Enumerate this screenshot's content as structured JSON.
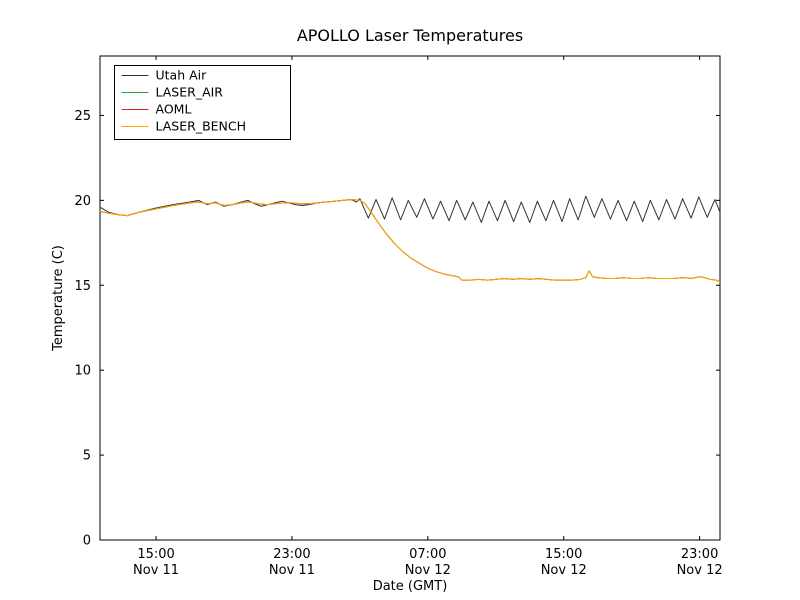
{
  "chart_data": {
    "type": "line",
    "title": "APOLLO Laser Temperatures",
    "xlabel": "Date (GMT)",
    "ylabel": "Temperature (C)",
    "x_unit": "hours since Nov 11 00:00 GMT",
    "xlim": [
      11.7,
      48.2
    ],
    "ylim": [
      0,
      28.5
    ],
    "grid": false,
    "legend_position": "upper left",
    "yticks": [
      0,
      5,
      10,
      15,
      20,
      25
    ],
    "xticks": [
      {
        "t": 15,
        "time": "15:00",
        "date": "Nov 11"
      },
      {
        "t": 23,
        "time": "23:00",
        "date": "Nov 11"
      },
      {
        "t": 31,
        "time": "07:00",
        "date": "Nov 12"
      },
      {
        "t": 39,
        "time": "15:00",
        "date": "Nov 12"
      },
      {
        "t": 47,
        "time": "23:00",
        "date": "Nov 12"
      }
    ],
    "series": [
      {
        "name": "Utah Air",
        "color": "#333333",
        "points": [
          [
            11.7,
            19.6
          ],
          [
            12.2,
            19.3
          ],
          [
            12.8,
            19.15
          ],
          [
            13.3,
            19.1
          ],
          [
            14,
            19.3
          ],
          [
            15,
            19.55
          ],
          [
            16,
            19.75
          ],
          [
            17,
            19.9
          ],
          [
            17.5,
            20.0
          ],
          [
            18,
            19.75
          ],
          [
            18.5,
            19.9
          ],
          [
            19,
            19.65
          ],
          [
            19.5,
            19.75
          ],
          [
            20,
            19.9
          ],
          [
            20.4,
            20.0
          ],
          [
            20.8,
            19.8
          ],
          [
            21.2,
            19.65
          ],
          [
            21.6,
            19.75
          ],
          [
            22,
            19.85
          ],
          [
            22.4,
            19.95
          ],
          [
            22.8,
            19.85
          ],
          [
            23.2,
            19.75
          ],
          [
            23.6,
            19.7
          ],
          [
            24,
            19.75
          ],
          [
            24.5,
            19.85
          ],
          [
            25,
            19.9
          ],
          [
            25.5,
            19.95
          ],
          [
            26,
            20.0
          ],
          [
            26.5,
            20.05
          ],
          [
            26.8,
            19.9
          ],
          [
            27.0,
            20.1
          ],
          [
            27.5,
            18.95
          ],
          [
            27.95,
            20.05
          ],
          [
            28.45,
            18.9
          ],
          [
            28.9,
            20.15
          ],
          [
            29.4,
            18.85
          ],
          [
            29.85,
            20.0
          ],
          [
            30.35,
            19.0
          ],
          [
            30.8,
            20.1
          ],
          [
            31.3,
            18.9
          ],
          [
            31.75,
            19.95
          ],
          [
            32.25,
            18.8
          ],
          [
            32.7,
            20.0
          ],
          [
            33.2,
            18.85
          ],
          [
            33.65,
            19.9
          ],
          [
            34.15,
            18.7
          ],
          [
            34.6,
            19.95
          ],
          [
            35.1,
            18.8
          ],
          [
            35.55,
            20.0
          ],
          [
            36.05,
            18.75
          ],
          [
            36.5,
            19.9
          ],
          [
            37.0,
            18.7
          ],
          [
            37.45,
            19.95
          ],
          [
            37.95,
            18.8
          ],
          [
            38.4,
            20.0
          ],
          [
            38.9,
            18.75
          ],
          [
            39.35,
            20.1
          ],
          [
            39.85,
            18.85
          ],
          [
            40.3,
            20.25
          ],
          [
            40.8,
            19.0
          ],
          [
            41.25,
            20.1
          ],
          [
            41.75,
            18.9
          ],
          [
            42.2,
            20.0
          ],
          [
            42.7,
            18.8
          ],
          [
            43.15,
            19.95
          ],
          [
            43.65,
            18.75
          ],
          [
            44.1,
            20.0
          ],
          [
            44.6,
            18.85
          ],
          [
            45.05,
            20.05
          ],
          [
            45.55,
            18.9
          ],
          [
            46.0,
            20.1
          ],
          [
            46.5,
            18.95
          ],
          [
            46.95,
            20.2
          ],
          [
            47.45,
            19.0
          ],
          [
            47.9,
            20.05
          ],
          [
            48.2,
            19.3
          ]
        ]
      },
      {
        "name": "LASER_AIR",
        "color": "#2ca02c",
        "points_ref": "LASER_BENCH",
        "note": "coincides with LASER_BENCH and is hidden beneath it"
      },
      {
        "name": "AOML",
        "color": "#d62728",
        "points_ref": "LASER_BENCH",
        "note": "coincides with LASER_BENCH and is hidden beneath it"
      },
      {
        "name": "LASER_BENCH",
        "color": "#ffa500",
        "points": [
          [
            11.7,
            19.35
          ],
          [
            12.2,
            19.25
          ],
          [
            12.8,
            19.15
          ],
          [
            13.3,
            19.1
          ],
          [
            14,
            19.3
          ],
          [
            15,
            19.5
          ],
          [
            16,
            19.7
          ],
          [
            17,
            19.85
          ],
          [
            17.5,
            19.9
          ],
          [
            18,
            19.8
          ],
          [
            18.5,
            19.85
          ],
          [
            19,
            19.7
          ],
          [
            19.5,
            19.75
          ],
          [
            20,
            19.85
          ],
          [
            20.5,
            19.9
          ],
          [
            21,
            19.8
          ],
          [
            21.5,
            19.75
          ],
          [
            22,
            19.8
          ],
          [
            22.5,
            19.85
          ],
          [
            23,
            19.85
          ],
          [
            23.5,
            19.8
          ],
          [
            24,
            19.8
          ],
          [
            24.5,
            19.85
          ],
          [
            25,
            19.9
          ],
          [
            25.5,
            19.95
          ],
          [
            26,
            20.0
          ],
          [
            26.5,
            20.05
          ],
          [
            27.0,
            20.0
          ],
          [
            27.3,
            19.8
          ],
          [
            27.6,
            19.4
          ],
          [
            28.0,
            18.8
          ],
          [
            28.5,
            18.1
          ],
          [
            29.0,
            17.5
          ],
          [
            29.5,
            17.0
          ],
          [
            30.0,
            16.6
          ],
          [
            30.5,
            16.3
          ],
          [
            31.0,
            16.0
          ],
          [
            31.5,
            15.8
          ],
          [
            32.0,
            15.65
          ],
          [
            32.5,
            15.55
          ],
          [
            32.8,
            15.5
          ],
          [
            33.0,
            15.3
          ],
          [
            33.5,
            15.3
          ],
          [
            34.0,
            15.35
          ],
          [
            34.5,
            15.3
          ],
          [
            35.0,
            15.35
          ],
          [
            35.5,
            15.4
          ],
          [
            36.0,
            15.35
          ],
          [
            36.5,
            15.4
          ],
          [
            37.0,
            15.35
          ],
          [
            37.5,
            15.4
          ],
          [
            38.0,
            15.35
          ],
          [
            38.5,
            15.3
          ],
          [
            39.0,
            15.3
          ],
          [
            39.5,
            15.3
          ],
          [
            40.0,
            15.35
          ],
          [
            40.3,
            15.45
          ],
          [
            40.5,
            15.85
          ],
          [
            40.7,
            15.5
          ],
          [
            41.0,
            15.45
          ],
          [
            41.5,
            15.4
          ],
          [
            42.0,
            15.4
          ],
          [
            42.5,
            15.45
          ],
          [
            43.0,
            15.4
          ],
          [
            43.5,
            15.4
          ],
          [
            44.0,
            15.45
          ],
          [
            44.5,
            15.4
          ],
          [
            45.0,
            15.4
          ],
          [
            45.5,
            15.4
          ],
          [
            46.0,
            15.45
          ],
          [
            46.5,
            15.4
          ],
          [
            47.0,
            15.5
          ],
          [
            47.3,
            15.45
          ],
          [
            47.6,
            15.35
          ],
          [
            48.0,
            15.3
          ],
          [
            48.2,
            15.2
          ]
        ]
      }
    ]
  }
}
